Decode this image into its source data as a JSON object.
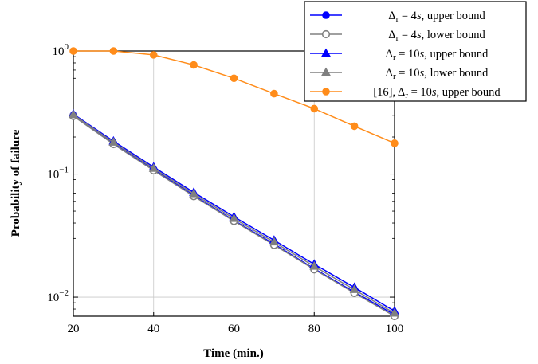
{
  "chart_data": {
    "type": "line",
    "xlabel": "Time (min.)",
    "ylabel": "Probability of failure",
    "xlim": [
      20,
      100
    ],
    "ylim": [
      0.007,
      1.0
    ],
    "yscale": "log",
    "grid": true,
    "x_ticks": [
      "20",
      "40",
      "60",
      "80",
      "100"
    ],
    "y_ticks": [
      {
        "value": 1,
        "base": "10",
        "exp": "0"
      },
      {
        "value": 0.1,
        "base": "10",
        "exp": "−1"
      },
      {
        "value": 0.01,
        "base": "10",
        "exp": "−2"
      }
    ],
    "x": [
      20,
      30,
      40,
      50,
      60,
      70,
      80,
      90,
      100
    ],
    "legend_position": "top-right",
    "series": [
      {
        "name": "Δr = 4s, upper bound",
        "legend": [
          "Δ",
          "r",
          " = 4",
          "s",
          ", upper bound"
        ],
        "color": "#0000ff",
        "marker": "circle",
        "filled": true,
        "values": [
          0.3,
          0.178,
          0.109,
          0.067,
          0.042,
          0.027,
          0.017,
          0.011,
          0.0072
        ]
      },
      {
        "name": "Δr = 4s, lower bound",
        "legend": [
          "Δ",
          "r",
          " = 4",
          "s",
          ", lower bound"
        ],
        "color": "#808080",
        "marker": "circle",
        "filled": false,
        "values": [
          0.296,
          0.175,
          0.107,
          0.066,
          0.0415,
          0.0265,
          0.0168,
          0.0108,
          0.007
        ]
      },
      {
        "name": "Δr = 10s, upper bound",
        "legend": [
          "Δ",
          "r",
          " = 10",
          "s",
          ", upper bound"
        ],
        "color": "#0000ff",
        "marker": "triangle",
        "filled": true,
        "values": [
          0.307,
          0.185,
          0.114,
          0.071,
          0.045,
          0.029,
          0.0185,
          0.012,
          0.0077
        ]
      },
      {
        "name": "Δr = 10s, lower bound",
        "legend": [
          "Δ",
          "r",
          " = 10",
          "s",
          ", lower bound"
        ],
        "color": "#808080",
        "marker": "triangle",
        "filled": true,
        "values": [
          0.303,
          0.181,
          0.111,
          0.069,
          0.0435,
          0.028,
          0.0178,
          0.0115,
          0.0074
        ]
      },
      {
        "name": "[16], Δr = 10s, upper bound",
        "legend": [
          "[16], Δ",
          "r",
          " = 10",
          "s",
          ", upper bound"
        ],
        "color": "#ff8c1a",
        "marker": "circle",
        "filled": true,
        "values": [
          1.0,
          1.0,
          0.93,
          0.77,
          0.6,
          0.45,
          0.34,
          0.245,
          0.178
        ]
      }
    ]
  }
}
